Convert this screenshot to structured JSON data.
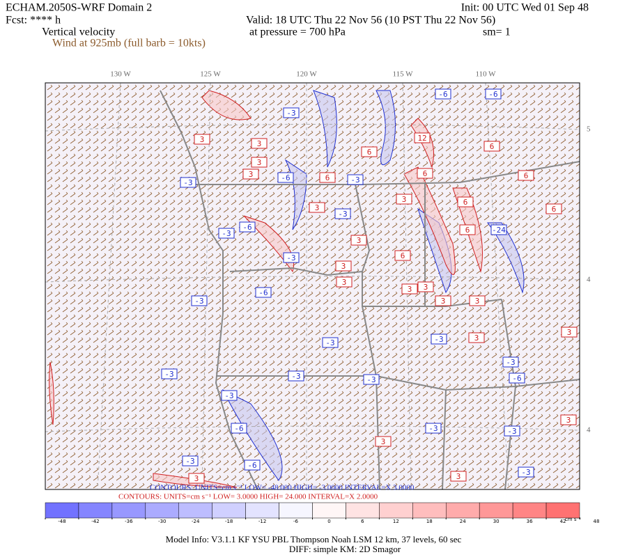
{
  "header": {
    "model": "ECHAM.2050S-WRF Domain 2",
    "forecast": "Fcst: **** h",
    "field": "Vertical velocity",
    "wind": "Wind at 925mb (full barb = 10kts)",
    "init": "Init: 00 UTC Wed 01 Sep 48",
    "valid": "Valid: 18 UTC Thu 22 Nov 56 (10 PST Thu 22 Nov 56)",
    "pressure": "at pressure =  700 hPa",
    "smoothing": "sm= 1"
  },
  "map": {
    "lon_labels": [
      "130 W",
      "125 W",
      "120 W",
      "115 W",
      "110 W"
    ],
    "lat_labels": [
      "5",
      "4",
      "4"
    ],
    "contour_labels": [
      -3,
      -3,
      -6,
      -3,
      -6,
      -3,
      -3,
      -3,
      -3,
      -6,
      -6,
      -24,
      -3,
      -6,
      -3,
      -3,
      -3,
      -3,
      -3,
      -6,
      -3,
      -6,
      -3,
      -3,
      -3,
      -6,
      -3,
      3,
      3,
      3,
      6,
      3,
      6,
      3,
      3,
      6,
      12,
      6,
      6,
      6,
      3,
      3,
      3,
      6,
      6,
      6,
      3,
      3,
      3,
      3,
      3,
      3,
      3,
      3,
      3,
      3
    ]
  },
  "contours": {
    "negative": "CONTOURS:  UNITS=cm s⁻¹   LOW=  -48.000     HIGH=  -3.0000     INTERVAL=X  3.0000",
    "positive": "CONTOURS:  UNITS=cm s⁻¹   LOW=   3.0000      HIGH=  24.000      INTERVAL=X  2.0000"
  },
  "colorbar": {
    "ticks": [
      -48,
      -42,
      -36,
      -30,
      -24,
      -18,
      -12,
      -6,
      0,
      6,
      12,
      18,
      24,
      30,
      36,
      42,
      48
    ],
    "unit": "cm s⁻¹"
  },
  "footer": {
    "model_info": "Model Info: V3.1.1     KF        YSU PBL   Thompson     Noah LSM  12 km,    37 levels,    60 sec",
    "diffusion": "DIFF: simple KM: 2D Smagor"
  }
}
